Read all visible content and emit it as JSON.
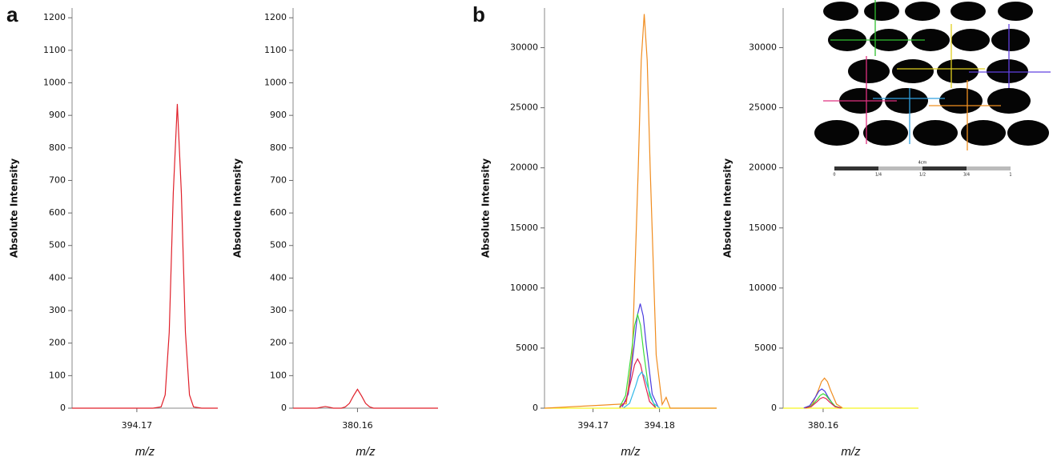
{
  "chart_data": [
    {
      "type": "line",
      "panel": "a",
      "y_label": "Absolute Intensity",
      "x_label": "m/z",
      "xlim": [
        394.162,
        394.18
      ],
      "xticks": [
        394.17
      ],
      "ylim": [
        0,
        1230
      ],
      "yticks": [
        0,
        100,
        200,
        300,
        400,
        500,
        600,
        700,
        800,
        900,
        1000,
        1100,
        1200
      ],
      "series": [
        {
          "color": "#e0202a",
          "x": [
            394.162,
            394.172,
            394.173,
            394.1735,
            394.174,
            394.1745,
            394.175,
            394.1755,
            394.176,
            394.1765,
            394.177,
            394.178,
            394.18
          ],
          "values": [
            0,
            0,
            4,
            41,
            233,
            661,
            935,
            661,
            233,
            41,
            4,
            0,
            0
          ]
        }
      ]
    },
    {
      "type": "line",
      "y_label": "Absolute Intensity",
      "x_label": "m/z",
      "xlim": [
        380.152,
        380.17
      ],
      "xticks": [
        380.16
      ],
      "ylim": [
        0,
        1230
      ],
      "yticks": [
        0,
        100,
        200,
        300,
        400,
        500,
        600,
        700,
        800,
        900,
        1000,
        1100,
        1200
      ],
      "series": [
        {
          "color": "#e0202a",
          "x": [
            380.152,
            380.155,
            380.1555,
            380.156,
            380.1565,
            380.157,
            380.158,
            380.1585,
            380.159,
            380.1595,
            380.16,
            380.1605,
            380.161,
            380.1615,
            380.162,
            380.17
          ],
          "values": [
            0,
            0,
            3,
            5,
            3,
            0,
            0,
            4,
            15,
            38,
            58,
            38,
            15,
            4,
            0,
            0
          ]
        }
      ]
    },
    {
      "type": "line",
      "panel": "b",
      "y_label": "Absolute Intensity",
      "x_label": "m/z",
      "xlim": [
        394.1627,
        394.1886
      ],
      "xticks": [
        394.17,
        394.18
      ],
      "ylim": [
        0,
        33300
      ],
      "yticks": [
        0,
        5000,
        10000,
        15000,
        20000,
        25000,
        30000
      ],
      "series": [
        {
          "color": "#f5f522",
          "x": [
            394.1627,
            394.1886
          ],
          "values": [
            0,
            0
          ]
        },
        {
          "color": "#f08c1e",
          "x": [
            394.1627,
            394.175,
            394.1759,
            394.1768,
            394.17725,
            394.1777,
            394.17815,
            394.1786,
            394.1795,
            394.1804,
            394.181,
            394.1816,
            394.1886
          ],
          "values": [
            0,
            361,
            4428,
            19910,
            28930,
            32800,
            28930,
            19910,
            4428,
            300,
            900,
            0,
            0
          ]
        },
        {
          "color": "#4a3ce0",
          "x": [
            394.1744,
            394.1753,
            394.1762,
            394.17665,
            394.1771,
            394.17755,
            394.178,
            394.1789,
            394.1798
          ],
          "values": [
            96,
            1175,
            5281,
            7673,
            8700,
            7673,
            5281,
            1175,
            96
          ]
        },
        {
          "color": "#3ddc3d",
          "x": [
            394.174,
            394.1749,
            394.1758,
            394.17625,
            394.1767,
            394.17715,
            394.1776,
            394.1785,
            394.1794
          ],
          "values": [
            86,
            1053,
            4735,
            6880,
            7800,
            6880,
            4735,
            1053,
            86
          ]
        },
        {
          "color": "#e02050",
          "x": [
            394.174,
            394.1749,
            394.1758,
            394.17625,
            394.1767,
            394.17715,
            394.1776,
            394.1785,
            394.1794
          ],
          "values": [
            45,
            554,
            2489,
            3616,
            4100,
            3616,
            2489,
            554,
            45
          ]
        },
        {
          "color": "#2fb8e8",
          "x": [
            394.1746,
            394.1755,
            394.1764,
            394.17685,
            394.1773,
            394.17775,
            394.1782,
            394.1791,
            394.18
          ],
          "values": [
            33,
            405,
            1821,
            2646,
            3000,
            2646,
            1821,
            405,
            33
          ]
        }
      ]
    },
    {
      "type": "line",
      "y_label": "Absolute Intensity",
      "x_label": "m/z",
      "xlim": [
        380.154,
        380.1743
      ],
      "xticks": [
        380.16
      ],
      "ylim": [
        0,
        33300
      ],
      "yticks": [
        0,
        5000,
        10000,
        15000,
        20000,
        25000,
        30000
      ],
      "series": [
        {
          "color": "#f5f522",
          "x": [
            380.154,
            380.1743
          ],
          "values": [
            0,
            0
          ]
        },
        {
          "color": "#f08c1e",
          "x": [
            380.1575,
            380.1584,
            380.1593,
            380.15975,
            380.1602,
            380.16065,
            380.1611,
            380.162,
            380.1629
          ],
          "values": [
            28,
            338,
            1518,
            2205,
            2500,
            2205,
            1518,
            338,
            28
          ]
        },
        {
          "color": "#4a3ce0",
          "x": [
            380.1571,
            380.158,
            380.1589,
            380.15935,
            380.1598,
            380.16025,
            380.1607,
            380.1616,
            380.1625
          ],
          "values": [
            18,
            216,
            971,
            1411,
            1600,
            1411,
            971,
            216,
            18
          ]
        },
        {
          "color": "#3ddc3d",
          "x": [
            380.1573,
            380.1582,
            380.1591,
            380.15955,
            380.16,
            380.16045,
            380.1609,
            380.1618,
            380.1627
          ],
          "values": [
            13,
            162,
            728,
            1058,
            1200,
            1058,
            728,
            162,
            13
          ]
        },
        {
          "color": "#e02050",
          "x": [
            380.1573,
            380.1582,
            380.1591,
            380.15955,
            380.16,
            380.16045,
            380.1609,
            380.1618,
            380.1627
          ],
          "values": [
            10,
            122,
            546,
            794,
            900,
            794,
            546,
            122,
            10
          ]
        }
      ]
    }
  ],
  "inset": {
    "scale_label": "4cm",
    "scale_ticks": [
      "0",
      "1/4",
      "1/2",
      "3/4",
      "1"
    ]
  }
}
